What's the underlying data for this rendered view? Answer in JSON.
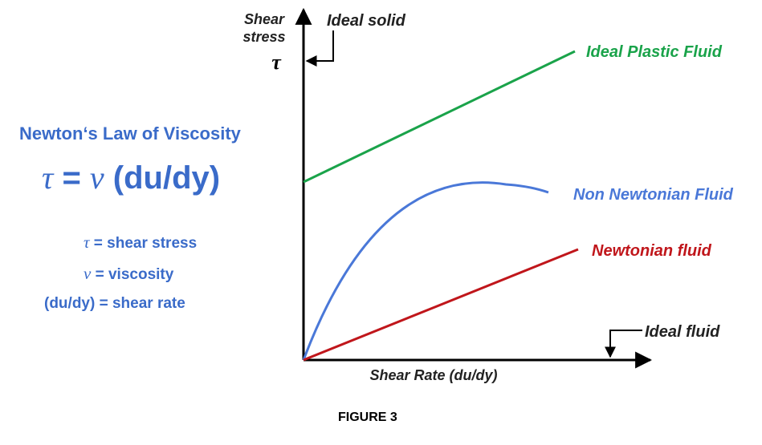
{
  "law": {
    "title": "Newton‘s Law of Viscosity",
    "equation": {
      "tau": "τ",
      "eq": " = ",
      "nu": "ν",
      "rest": " (du/dy)"
    }
  },
  "definitions": {
    "tau": {
      "symbol": "τ",
      "text": " = shear stress"
    },
    "nu": {
      "symbol": "ν",
      "text": " = viscosity"
    },
    "rate": {
      "text": "(du/dy) = shear rate"
    }
  },
  "axes": {
    "y_label_line1": "Shear",
    "y_label_line2": "stress",
    "y_symbol": "τ",
    "x_label": "Shear Rate (du/dy)"
  },
  "curves": {
    "ideal_solid": "Ideal solid",
    "ideal_plastic": "Ideal Plastic Fluid",
    "non_newtonian": "Non Newtonian Fluid",
    "newtonian": "Newtonian fluid",
    "ideal_fluid": "Ideal fluid"
  },
  "caption": "FIGURE 3",
  "colors": {
    "text_blue": "#3a6bc9",
    "plastic_green": "#1aa34a",
    "non_newtonian_blue": "#4a78d8",
    "newtonian_red": "#c0161b"
  }
}
